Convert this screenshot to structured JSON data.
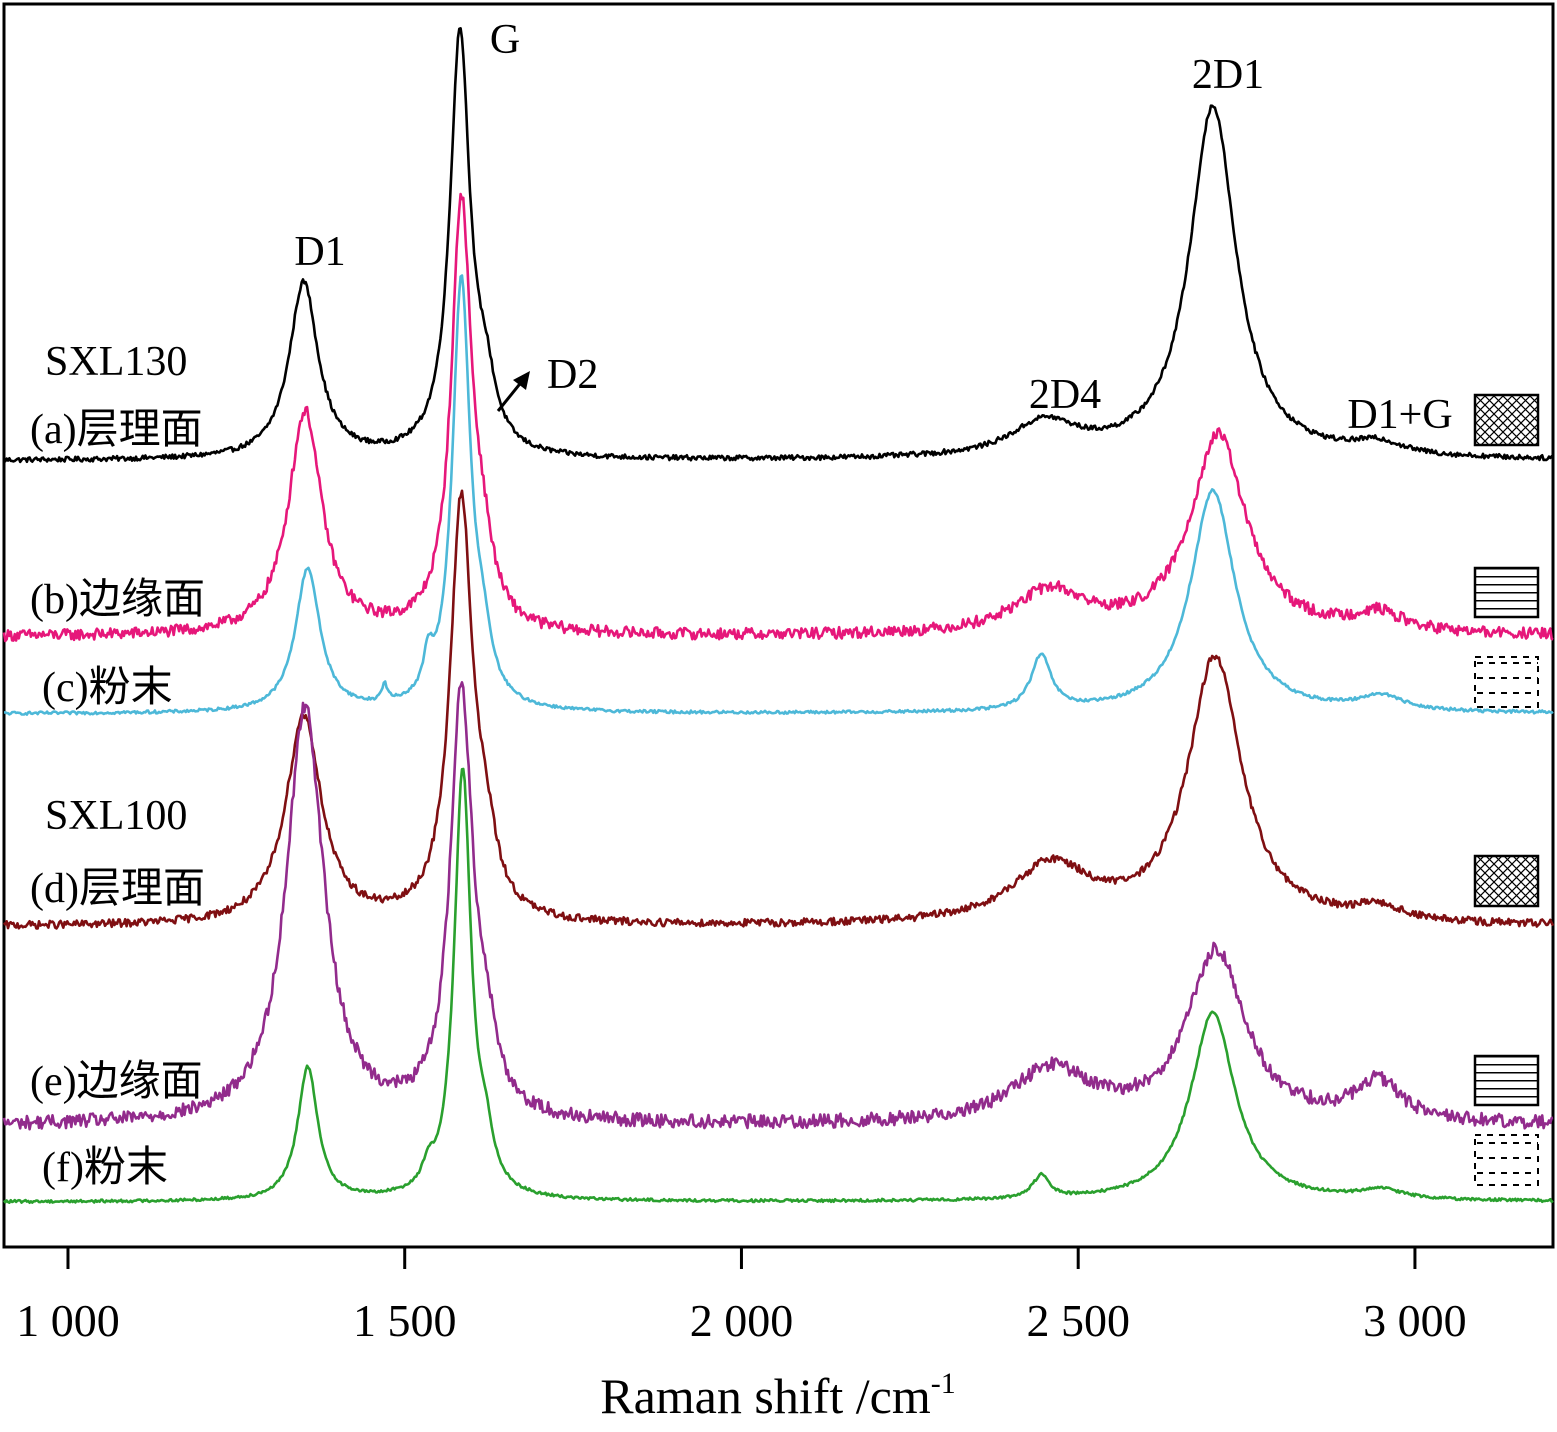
{
  "chart_data": {
    "type": "line",
    "title": "",
    "xlabel": "Raman shift /cm",
    "xlabel_superscript": "-1",
    "ylabel": "",
    "xlim": [
      905,
      3205
    ],
    "x_ticks": [
      1000,
      1500,
      2000,
      2500,
      3000
    ],
    "x_tick_labels": [
      "1 000",
      "1 500",
      "2 000",
      "2 500",
      "3 000"
    ],
    "grid": false,
    "stacked_offset": true,
    "group_labels": [
      "SXL130",
      "SXL100"
    ],
    "peak_labels": [
      "D1",
      "G",
      "D2",
      "2D4",
      "2D1",
      "D1+G"
    ],
    "series": [
      {
        "name": "(a)层理面",
        "group": "SXL130",
        "color": "#000000",
        "pattern": "crosshatch",
        "baseline": 0.0,
        "noise": 0.005,
        "peaks": [
          {
            "center": 1350,
            "height": 0.36,
            "width": 26
          },
          {
            "center": 1582,
            "height": 0.86,
            "width": 18
          },
          {
            "center": 1620,
            "height": 0.11,
            "width": 18
          },
          {
            "center": 2450,
            "height": 0.07,
            "width": 60
          },
          {
            "center": 2700,
            "height": 0.72,
            "width": 42
          },
          {
            "center": 2945,
            "height": 0.025,
            "width": 45
          }
        ]
      },
      {
        "name": "(b)边缘面",
        "group": "SXL130",
        "color": "#e6177a",
        "pattern": "horizontal",
        "baseline": 0.0,
        "noise": 0.012,
        "peaks": [
          {
            "center": 1352,
            "height": 0.47,
            "width": 30
          },
          {
            "center": 1584,
            "height": 0.89,
            "width": 18
          },
          {
            "center": 1615,
            "height": 0.12,
            "width": 20
          },
          {
            "center": 2458,
            "height": 0.09,
            "width": 65
          },
          {
            "center": 2708,
            "height": 0.42,
            "width": 50
          },
          {
            "center": 2945,
            "height": 0.04,
            "width": 45
          }
        ]
      },
      {
        "name": "(c)粉末",
        "group": "SXL130",
        "color": "#4db8d8",
        "pattern": "dotted",
        "baseline": 0.0,
        "noise": 0.003,
        "peaks": [
          {
            "center": 1356,
            "height": 0.29,
            "width": 22
          },
          {
            "center": 1584,
            "height": 0.86,
            "width": 16
          },
          {
            "center": 1615,
            "height": 0.1,
            "width": 16
          },
          {
            "center": 1470,
            "height": 0.035,
            "width": 5
          },
          {
            "center": 1535,
            "height": 0.07,
            "width": 8
          },
          {
            "center": 2445,
            "height": 0.11,
            "width": 18
          },
          {
            "center": 2700,
            "height": 0.45,
            "width": 40
          },
          {
            "center": 2950,
            "height": 0.03,
            "width": 40
          }
        ]
      },
      {
        "name": "(d)层理面",
        "group": "SXL100",
        "color": "#7f0f12",
        "pattern": "crosshatch",
        "baseline": 0.0,
        "noise": 0.008,
        "peaks": [
          {
            "center": 1350,
            "height": 0.43,
            "width": 32
          },
          {
            "center": 1584,
            "height": 0.86,
            "width": 20
          },
          {
            "center": 1620,
            "height": 0.12,
            "width": 20
          },
          {
            "center": 2460,
            "height": 0.12,
            "width": 70
          },
          {
            "center": 2703,
            "height": 0.55,
            "width": 48
          },
          {
            "center": 2945,
            "height": 0.03,
            "width": 40
          }
        ]
      },
      {
        "name": "(e)边缘面",
        "group": "SXL100",
        "color": "#922b8c",
        "pattern": "horizontal",
        "baseline": 0.0,
        "noise": 0.014,
        "peaks": [
          {
            "center": 1352,
            "height": 0.85,
            "width": 34
          },
          {
            "center": 1584,
            "height": 0.86,
            "width": 20
          },
          {
            "center": 1620,
            "height": 0.12,
            "width": 20
          },
          {
            "center": 2460,
            "height": 0.11,
            "width": 70
          },
          {
            "center": 2705,
            "height": 0.35,
            "width": 52
          },
          {
            "center": 2945,
            "height": 0.08,
            "width": 42
          }
        ]
      },
      {
        "name": "(f)粉末",
        "group": "SXL100",
        "color": "#2aa02e",
        "pattern": "dotted",
        "baseline": 0.0,
        "noise": 0.003,
        "peaks": [
          {
            "center": 1356,
            "height": 0.29,
            "width": 18
          },
          {
            "center": 1586,
            "height": 0.93,
            "width": 15
          },
          {
            "center": 1620,
            "height": 0.09,
            "width": 14
          },
          {
            "center": 1535,
            "height": 0.04,
            "width": 10
          },
          {
            "center": 2445,
            "height": 0.05,
            "width": 15
          },
          {
            "center": 2700,
            "height": 0.41,
            "width": 40
          },
          {
            "center": 2950,
            "height": 0.02,
            "width": 40
          }
        ]
      }
    ]
  }
}
